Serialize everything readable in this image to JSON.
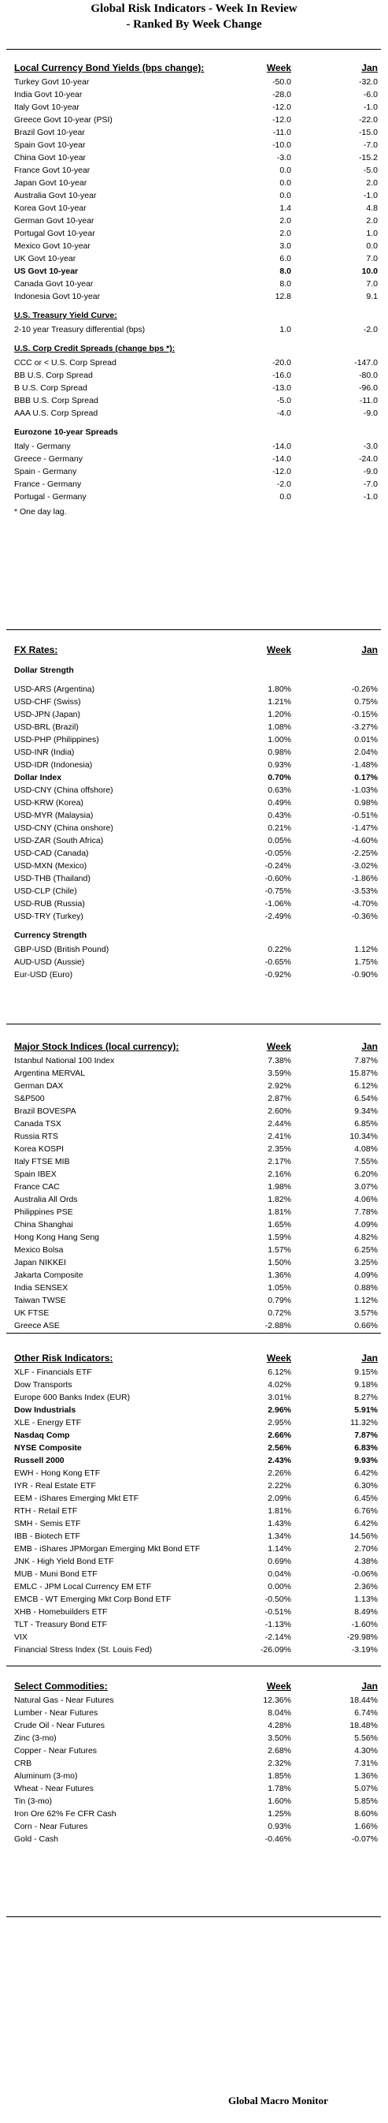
{
  "title": {
    "line1": "Global Risk Indicators - Week In Review",
    "line2": "- Ranked By Week Change"
  },
  "bond_yields": {
    "heading": "Local Currency Bond Yields (bps change):",
    "week_label": "Week",
    "jan_label": "Jan",
    "rows": [
      {
        "label": "Turkey Govt 10-year",
        "week": "-50.0",
        "jan": "-32.0",
        "bold": false
      },
      {
        "label": "India Govt 10-year",
        "week": "-28.0",
        "jan": "-6.0",
        "bold": false
      },
      {
        "label": "Italy Govt 10-year",
        "week": "-12.0",
        "jan": "-1.0",
        "bold": false
      },
      {
        "label": "Greece Govt 10-year (PSI)",
        "week": "-12.0",
        "jan": "-22.0",
        "bold": false
      },
      {
        "label": "Brazil Govt 10-year",
        "week": "-11.0",
        "jan": "-15.0",
        "bold": false
      },
      {
        "label": "Spain Govt 10-year",
        "week": "-10.0",
        "jan": "-7.0",
        "bold": false
      },
      {
        "label": "China Govt 10-year",
        "week": "-3.0",
        "jan": "-15.2",
        "bold": false
      },
      {
        "label": "France Govt 10-year",
        "week": "0.0",
        "jan": "-5.0",
        "bold": false
      },
      {
        "label": "Japan Govt 10-year",
        "week": "0.0",
        "jan": "2.0",
        "bold": false
      },
      {
        "label": "Australia Govt 10-year",
        "week": "0.0",
        "jan": "-1.0",
        "bold": false
      },
      {
        "label": "Korea Govt 10-year",
        "week": "1.4",
        "jan": "4.8",
        "bold": false
      },
      {
        "label": "German Govt 10-year",
        "week": "2.0",
        "jan": "2.0",
        "bold": false
      },
      {
        "label": "Portugal Govt 10-year",
        "week": "2.0",
        "jan": "1.0",
        "bold": false
      },
      {
        "label": "Mexico Govt 10-year",
        "week": "3.0",
        "jan": "0.0",
        "bold": false
      },
      {
        "label": "UK Govt 10-year",
        "week": "6.0",
        "jan": "7.0",
        "bold": false
      },
      {
        "label": "US Govt 10-year",
        "week": "8.0",
        "jan": "10.0",
        "bold": true
      },
      {
        "label": "Canada Govt 10-year",
        "week": "8.0",
        "jan": "7.0",
        "bold": false
      },
      {
        "label": "Indonesia Govt 10-year",
        "week": "12.8",
        "jan": "9.1",
        "bold": false
      }
    ],
    "treasury_heading": "U.S. Treasury Yield Curve:",
    "treasury_rows": [
      {
        "label": "2-10 year Treasury differential (bps)",
        "week": "1.0",
        "jan": "-2.0"
      }
    ],
    "credit_heading": "U.S. Corp Credit Spreads (change bps *):",
    "credit_rows": [
      {
        "label": "CCC or < U.S. Corp Spread",
        "week": "-20.0",
        "jan": "-147.0"
      },
      {
        "label": "BB U.S. Corp Spread",
        "week": "-16.0",
        "jan": "-80.0"
      },
      {
        "label": "B U.S. Corp Spread",
        "week": "-13.0",
        "jan": "-96.0"
      },
      {
        "label": "BBB U.S. Corp Spread",
        "week": "-5.0",
        "jan": "-11.0"
      },
      {
        "label": "AAA U.S. Corp Spread",
        "week": "-4.0",
        "jan": "-9.0"
      }
    ],
    "eurozone_heading": "Eurozone 10-year Spreads",
    "eurozone_rows": [
      {
        "label": "Italy - Germany",
        "week": "-14.0",
        "jan": "-3.0"
      },
      {
        "label": "Greece - Germany",
        "week": "-14.0",
        "jan": "-24.0"
      },
      {
        "label": "Spain - Germany",
        "week": "-12.0",
        "jan": "-9.0"
      },
      {
        "label": "France - Germany",
        "week": "-2.0",
        "jan": "-7.0"
      },
      {
        "label": "Portugal - Germany",
        "week": "0.0",
        "jan": "-1.0"
      }
    ],
    "note": "* One day lag."
  },
  "fx": {
    "heading": "FX Rates:",
    "week_label": "Week",
    "jan_label": "Jan",
    "dollar_heading": "Dollar Strength",
    "dollar_rows": [
      {
        "label": "USD-ARS (Argentina)",
        "week": "1.80%",
        "jan": "-0.26%",
        "bold": false
      },
      {
        "label": "USD-CHF (Swiss)",
        "week": "1.21%",
        "jan": "0.75%",
        "bold": false
      },
      {
        "label": "USD-JPN (Japan)",
        "week": "1.20%",
        "jan": "-0.15%",
        "bold": false
      },
      {
        "label": "USD-BRL (Brazil)",
        "week": "1.08%",
        "jan": "-3.27%",
        "bold": false
      },
      {
        "label": "USD-PHP (Philippines)",
        "week": "1.00%",
        "jan": "0.01%",
        "bold": false
      },
      {
        "label": "USD-INR (India)",
        "week": "0.98%",
        "jan": "2.04%",
        "bold": false
      },
      {
        "label": "USD-IDR (Indonesia)",
        "week": "0.93%",
        "jan": "-1.48%",
        "bold": false
      },
      {
        "label": "Dollar Index",
        "week": "0.70%",
        "jan": "0.17%",
        "bold": true
      },
      {
        "label": "USD-CNY (China offshore)",
        "week": "0.63%",
        "jan": "-1.03%",
        "bold": false
      },
      {
        "label": "USD-KRW (Korea)",
        "week": "0.49%",
        "jan": "0.98%",
        "bold": false
      },
      {
        "label": "USD-MYR (Malaysia)",
        "week": "0.43%",
        "jan": "-0.51%",
        "bold": false
      },
      {
        "label": "USD-CNY (China onshore)",
        "week": "0.21%",
        "jan": "-1.47%",
        "bold": false
      },
      {
        "label": "USD-ZAR (South Africa)",
        "week": "0.05%",
        "jan": "-4.60%",
        "bold": false
      },
      {
        "label": "USD-CAD (Canada)",
        "week": "-0.05%",
        "jan": "-2.25%",
        "bold": false
      },
      {
        "label": "USD-MXN  (Mexico)",
        "week": "-0.24%",
        "jan": "-3.02%",
        "bold": false
      },
      {
        "label": "USD-THB  (Thailand)",
        "week": "-0.60%",
        "jan": "-1.86%",
        "bold": false
      },
      {
        "label": "USD-CLP (Chile)",
        "week": "-0.75%",
        "jan": "-3.53%",
        "bold": false
      },
      {
        "label": "USD-RUB (Russia)",
        "week": "-1.06%",
        "jan": "-4.70%",
        "bold": false
      },
      {
        "label": "USD-TRY (Turkey)",
        "week": "-2.49%",
        "jan": "-0.36%",
        "bold": false
      }
    ],
    "currency_heading": "Currency Strength",
    "currency_rows": [
      {
        "label": "GBP-USD (British Pound)",
        "week": "0.22%",
        "jan": "1.12%"
      },
      {
        "label": "AUD-USD (Aussie)",
        "week": "-0.65%",
        "jan": "1.75%"
      },
      {
        "label": "Eur-USD (Euro)",
        "week": "-0.92%",
        "jan": "-0.90%"
      }
    ]
  },
  "stocks": {
    "heading": "Major Stock Indices (local currency):",
    "week_label": "Week",
    "jan_label": "Jan",
    "rows": [
      {
        "label": "Istanbul National 100 Index",
        "week": "7.38%",
        "jan": "7.87%"
      },
      {
        "label": "Argentina MERVAL",
        "week": "3.59%",
        "jan": "15.87%"
      },
      {
        "label": "German DAX",
        "week": "2.92%",
        "jan": "6.12%"
      },
      {
        "label": "S&P500",
        "week": "2.87%",
        "jan": "6.54%"
      },
      {
        "label": "Brazil BOVESPA",
        "week": "2.60%",
        "jan": "9.34%"
      },
      {
        "label": "Canada TSX",
        "week": "2.44%",
        "jan": "6.85%"
      },
      {
        "label": "Russia RTS",
        "week": "2.41%",
        "jan": "10.34%"
      },
      {
        "label": "Korea KOSPI",
        "week": "2.35%",
        "jan": "4.08%"
      },
      {
        "label": "Italy FTSE MIB",
        "week": "2.17%",
        "jan": "7.55%"
      },
      {
        "label": "Spain IBEX",
        "week": "2.16%",
        "jan": "6.20%"
      },
      {
        "label": "France CAC",
        "week": "1.98%",
        "jan": "3.07%"
      },
      {
        "label": "Australia All Ords",
        "week": "1.82%",
        "jan": "4.06%"
      },
      {
        "label": "Philippines PSE",
        "week": "1.81%",
        "jan": "7.78%"
      },
      {
        "label": "China Shanghai",
        "week": "1.65%",
        "jan": "4.09%"
      },
      {
        "label": "Hong Kong Hang Seng",
        "week": "1.59%",
        "jan": "4.82%"
      },
      {
        "label": "Mexico Bolsa",
        "week": "1.57%",
        "jan": "6.25%"
      },
      {
        "label": "Japan NIKKEI",
        "week": "1.50%",
        "jan": "3.25%"
      },
      {
        "label": "Jakarta Composite",
        "week": "1.36%",
        "jan": "4.09%"
      },
      {
        "label": "India SENSEX",
        "week": "1.05%",
        "jan": "0.88%"
      },
      {
        "label": "Taiwan  TWSE",
        "week": "0.79%",
        "jan": "1.12%"
      },
      {
        "label": "UK FTSE",
        "week": "0.72%",
        "jan": "3.57%"
      },
      {
        "label": "Greece ASE",
        "week": "-2.88%",
        "jan": "0.66%"
      }
    ]
  },
  "risk": {
    "heading": "Other Risk Indicators:",
    "week_label": "Week",
    "jan_label": "Jan",
    "rows": [
      {
        "label": "XLF - Financials ETF",
        "week": "6.12%",
        "jan": "9.15%",
        "bold": false
      },
      {
        "label": "Dow Transports",
        "week": "4.02%",
        "jan": "9.18%",
        "bold": false
      },
      {
        "label": "Europe 600 Banks Index (EUR)",
        "week": "3.01%",
        "jan": "8.27%",
        "bold": false
      },
      {
        "label": "Dow Industrials",
        "week": "2.96%",
        "jan": "5.91%",
        "bold": true
      },
      {
        "label": "XLE - Energy ETF",
        "week": "2.95%",
        "jan": "11.32%",
        "bold": false
      },
      {
        "label": "Nasdaq Comp",
        "week": "2.66%",
        "jan": "7.87%",
        "bold": true
      },
      {
        "label": "NYSE Composite",
        "week": "2.56%",
        "jan": "6.83%",
        "bold": true
      },
      {
        "label": "Russell 2000",
        "week": "2.43%",
        "jan": "9.93%",
        "bold": true
      },
      {
        "label": "EWH - Hong Kong ETF",
        "week": "2.26%",
        "jan": "6.42%",
        "bold": false
      },
      {
        "label": "IYR - Real Estate ETF",
        "week": "2.22%",
        "jan": "6.30%",
        "bold": false
      },
      {
        "label": "EEM - iShares Emerging Mkt ETF",
        "week": "2.09%",
        "jan": "6.45%",
        "bold": false
      },
      {
        "label": "RTH - Retail ETF",
        "week": "1.81%",
        "jan": "6.76%",
        "bold": false
      },
      {
        "label": "SMH - Semis ETF",
        "week": "1.43%",
        "jan": "6.42%",
        "bold": false
      },
      {
        "label": "IBB - Biotech ETF",
        "week": "1.34%",
        "jan": "14.56%",
        "bold": false
      },
      {
        "label": "EMB - iShares JPMorgan Emerging Mkt Bond ETF",
        "week": "1.14%",
        "jan": "2.70%",
        "bold": false
      },
      {
        "label": "JNK - High Yield Bond ETF",
        "week": "0.69%",
        "jan": "4.38%",
        "bold": false
      },
      {
        "label": "MUB - Muni Bond ETF",
        "week": "0.04%",
        "jan": "-0.06%",
        "bold": false
      },
      {
        "label": "EMLC - JPM Local Currency EM ETF",
        "week": "0.00%",
        "jan": "2.36%",
        "bold": false
      },
      {
        "label": "EMCB - WT Emerging Mkt Corp Bond ETF",
        "week": "-0.50%",
        "jan": "1.13%",
        "bold": false
      },
      {
        "label": "XHB - Homebuilders ETF",
        "week": "-0.51%",
        "jan": "8.49%",
        "bold": false
      },
      {
        "label": "TLT - Treasury Bond ETF",
        "week": "-1.13%",
        "jan": "-1.60%",
        "bold": false
      },
      {
        "label": "VIX",
        "week": "-2.14%",
        "jan": "-29.98%",
        "bold": false
      },
      {
        "label": "Financial Stress Index (St. Louis Fed)",
        "week": "-26.09%",
        "jan": "-3.19%",
        "bold": false
      }
    ]
  },
  "commodities": {
    "heading": "Select Commodities:",
    "week_label": "Week",
    "jan_label": "Jan",
    "rows": [
      {
        "label": "Natural Gas - Near Futures",
        "week": "12.36%",
        "jan": "18.44%"
      },
      {
        "label": "Lumber - Near Futures",
        "week": "8.04%",
        "jan": "6.74%"
      },
      {
        "label": "Crude Oil - Near Futures",
        "week": "4.28%",
        "jan": "18.48%"
      },
      {
        "label": "Zinc (3-mo)",
        "week": "3.50%",
        "jan": "5.56%"
      },
      {
        "label": "Copper - Near Futures",
        "week": "2.68%",
        "jan": "4.30%"
      },
      {
        "label": "CRB",
        "week": "2.32%",
        "jan": "7.31%"
      },
      {
        "label": "Aluminum (3-mo)",
        "week": "1.85%",
        "jan": "1.36%"
      },
      {
        "label": "Wheat - Near Futures",
        "week": "1.78%",
        "jan": "5.07%"
      },
      {
        "label": "Tin (3-mo)",
        "week": "1.60%",
        "jan": "5.85%"
      },
      {
        "label": "Iron Ore 62% Fe CFR Cash",
        "week": "1.25%",
        "jan": "8.60%"
      },
      {
        "label": "Corn - Near Futures",
        "week": "0.93%",
        "jan": "1.66%"
      },
      {
        "label": "Gold - Cash",
        "week": "-0.46%",
        "jan": "-0.07%"
      }
    ]
  },
  "footer": "Global Macro Monitor"
}
